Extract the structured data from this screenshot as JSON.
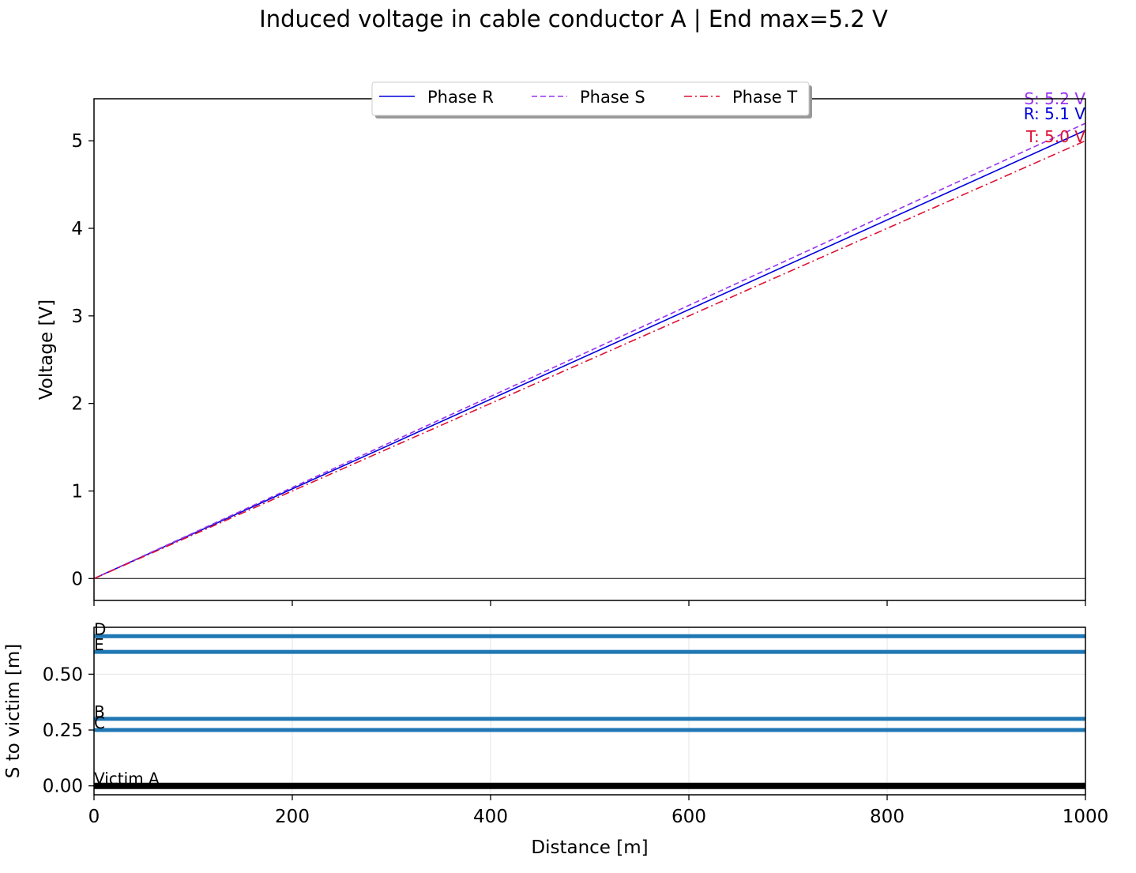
{
  "chart_data": [
    {
      "type": "line",
      "title": "Induced voltage in cable conductor A  |  End max=5.2 V",
      "xlabel": "",
      "ylabel": "Voltage [V]",
      "xlim": [
        0,
        1000
      ],
      "ylim": [
        -0.25,
        5.48
      ],
      "yticks": [
        0,
        1,
        2,
        3,
        4,
        5
      ],
      "xticks": [
        0,
        200,
        400,
        600,
        800,
        1000
      ],
      "grid": false,
      "legend": "top-center",
      "zero_line": true,
      "series": [
        {
          "name": "Phase R",
          "color": "#0000dd",
          "dash": "solid",
          "x": [
            0,
            1000
          ],
          "y": [
            0,
            5.12
          ],
          "end_label": "R: 5.1 V"
        },
        {
          "name": "Phase S",
          "color": "#9933ee",
          "dash": "dashed",
          "x": [
            0,
            1000
          ],
          "y": [
            0,
            5.2
          ],
          "end_label": "S: 5.2 V"
        },
        {
          "name": "Phase T",
          "color": "#dd1133",
          "dash": "dashdot",
          "x": [
            0,
            1000
          ],
          "y": [
            0,
            5.0
          ],
          "end_label": "T: 5.0 V"
        }
      ]
    },
    {
      "type": "line",
      "xlabel": "Distance [m]",
      "ylabel": "S to victim [m]",
      "xlim": [
        0,
        1000
      ],
      "ylim": [
        -0.04,
        0.71
      ],
      "yticks": [
        0.0,
        0.25,
        0.5
      ],
      "ytick_labels": [
        "0.00",
        "0.25",
        "0.50"
      ],
      "xticks": [
        0,
        200,
        400,
        600,
        800,
        1000
      ],
      "xtick_labels": [
        "0",
        "200",
        "400",
        "600",
        "800",
        "1000"
      ],
      "grid": true,
      "series": [
        {
          "name": "D",
          "color": "#1f77b4",
          "x": [
            0,
            1000
          ],
          "y": [
            0.67,
            0.67
          ]
        },
        {
          "name": "E",
          "color": "#1f77b4",
          "x": [
            0,
            1000
          ],
          "y": [
            0.6,
            0.6
          ]
        },
        {
          "name": "B",
          "color": "#1f77b4",
          "x": [
            0,
            1000
          ],
          "y": [
            0.3,
            0.3
          ]
        },
        {
          "name": "C",
          "color": "#1f77b4",
          "x": [
            0,
            1000
          ],
          "y": [
            0.25,
            0.25
          ]
        },
        {
          "name": "Victim A",
          "color": "#000000",
          "x": [
            0,
            1000
          ],
          "y": [
            0.0,
            0.0
          ]
        }
      ]
    }
  ]
}
